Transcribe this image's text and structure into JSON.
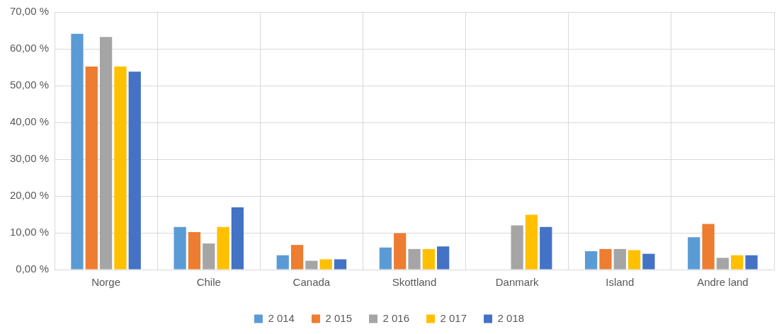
{
  "chart_data": {
    "type": "bar",
    "categories": [
      "Norge",
      "Chile",
      "Canada",
      "Skottland",
      "Danmark",
      "Island",
      "Andre land"
    ],
    "series": [
      {
        "name": "2 014",
        "color": "#5b9bd5",
        "values": [
          64.1,
          11.6,
          3.9,
          6.0,
          null,
          5.0,
          8.8
        ]
      },
      {
        "name": "2 015",
        "color": "#ed7d31",
        "values": [
          55.2,
          10.2,
          6.7,
          9.9,
          null,
          5.6,
          12.4
        ]
      },
      {
        "name": "2 016",
        "color": "#a5a5a5",
        "values": [
          63.2,
          7.1,
          2.4,
          5.6,
          12.0,
          5.6,
          3.2
        ]
      },
      {
        "name": "2 017",
        "color": "#ffc000",
        "values": [
          55.2,
          11.6,
          2.8,
          5.6,
          14.9,
          5.3,
          3.9
        ]
      },
      {
        "name": "2 018",
        "color": "#4472c4",
        "values": [
          53.8,
          16.9,
          2.8,
          6.3,
          11.6,
          4.3,
          3.9
        ]
      }
    ],
    "ylim": [
      0,
      70
    ],
    "yticks": [
      {
        "value": 0,
        "label": "0,00 %"
      },
      {
        "value": 10,
        "label": "10,00 %"
      },
      {
        "value": 20,
        "label": "20,00 %"
      },
      {
        "value": 30,
        "label": "30,00 %"
      },
      {
        "value": 40,
        "label": "40,00 %"
      },
      {
        "value": 50,
        "label": "50,00 %"
      },
      {
        "value": 60,
        "label": "60,00 %"
      },
      {
        "value": 70,
        "label": "70,00 %"
      }
    ],
    "grid": true,
    "legend": "bottom"
  }
}
